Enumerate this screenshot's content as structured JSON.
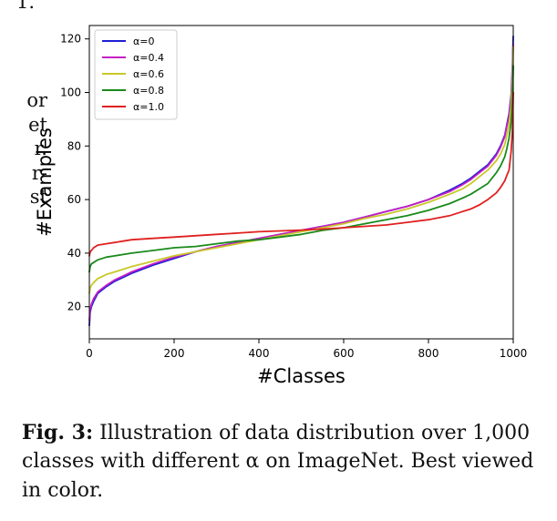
{
  "page": {
    "top_fragment": "1.",
    "left_fragments": [
      "or",
      "et",
      "r.",
      "r-",
      "st"
    ]
  },
  "chart_data": {
    "type": "line",
    "xlabel": "#Classes",
    "ylabel": "#Examples",
    "xlim": [
      0,
      1000
    ],
    "ylim": [
      8,
      125
    ],
    "xticks": [
      0,
      200,
      400,
      600,
      800,
      1000
    ],
    "yticks": [
      20,
      40,
      60,
      80,
      100,
      120
    ],
    "legend_position": "top-left",
    "x": [
      0,
      2,
      5,
      10,
      20,
      40,
      60,
      80,
      100,
      150,
      200,
      250,
      300,
      350,
      400,
      450,
      500,
      550,
      600,
      650,
      700,
      750,
      800,
      850,
      880,
      900,
      920,
      940,
      960,
      970,
      980,
      985,
      990,
      995,
      998,
      1000
    ],
    "series": [
      {
        "name": "α=0",
        "color": "#1f1fd6",
        "values": [
          13,
          18,
          20,
          22,
          25,
          27.5,
          29.5,
          31,
          32.5,
          35.5,
          38,
          40.5,
          42.5,
          44,
          45.5,
          47,
          48.5,
          50,
          51.5,
          53.5,
          55.5,
          57.5,
          60,
          63.5,
          66,
          68,
          70.5,
          73,
          77,
          80,
          84,
          88,
          92,
          99,
          110,
          121
        ]
      },
      {
        "name": "α=0.4",
        "color": "#c41fc4",
        "values": [
          15,
          19,
          21,
          23,
          25.5,
          28,
          30,
          31.5,
          33,
          36,
          38.5,
          40.5,
          42.5,
          44,
          45.5,
          47,
          48.5,
          50,
          51.5,
          53.5,
          55.5,
          57.5,
          60,
          63,
          65.5,
          67.5,
          70,
          72.5,
          76.5,
          79.5,
          83.5,
          87.5,
          91,
          98,
          108,
          118
        ]
      },
      {
        "name": "α=0.6",
        "color": "#c8c82a",
        "values": [
          25,
          27,
          28,
          29,
          30.5,
          32,
          33,
          34,
          35,
          37,
          39,
          40.5,
          42,
          43.5,
          45,
          46.5,
          48,
          49.5,
          51,
          53,
          54.5,
          56.5,
          59,
          62,
          64,
          66,
          68.5,
          71,
          74.5,
          77,
          80.5,
          84,
          88,
          95,
          105,
          117
        ]
      },
      {
        "name": "α=0.8",
        "color": "#1a8a1a",
        "values": [
          33,
          35,
          36,
          36.5,
          37.5,
          38.5,
          39,
          39.5,
          40,
          41,
          42,
          42.5,
          43.5,
          44.5,
          45,
          46,
          47,
          48.5,
          49.5,
          51,
          52.5,
          54,
          56,
          58.5,
          60.5,
          62,
          64,
          66,
          70,
          72.5,
          76,
          79,
          83,
          89,
          98,
          110
        ]
      },
      {
        "name": "α=1.0",
        "color": "#e02020",
        "values": [
          39,
          40.5,
          41,
          42,
          43,
          43.5,
          44,
          44.5,
          45,
          45.5,
          46,
          46.5,
          47,
          47.5,
          48,
          48.3,
          48.6,
          49,
          49.5,
          50,
          50.5,
          51.5,
          52.5,
          54,
          55.5,
          56.5,
          58,
          60,
          62.5,
          64.5,
          67,
          69,
          71,
          78,
          86,
          100
        ]
      }
    ]
  },
  "caption": {
    "label": "Fig. 3:",
    "text": " Illustration of data distribution over 1,000 classes with different α on ImageNet. Best viewed in color."
  }
}
